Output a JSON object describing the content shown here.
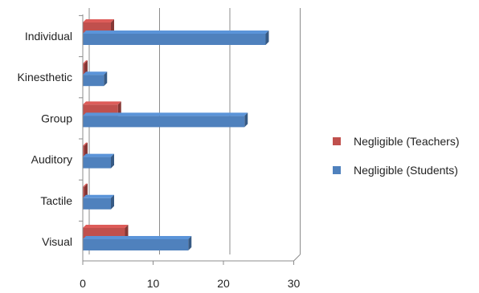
{
  "chart_data": {
    "type": "bar",
    "orientation": "horizontal",
    "style": "3d",
    "categories": [
      "Individual",
      "Kinesthetic",
      "Group",
      "Auditory",
      "Tactile",
      "Visual"
    ],
    "series": [
      {
        "name": "Negligible (Teachers)",
        "values": [
          4,
          0,
          5,
          0,
          0,
          6
        ],
        "color": "#C0504D"
      },
      {
        "name": "Negligible (Students)",
        "values": [
          26,
          3,
          23,
          4,
          4,
          15
        ],
        "color": "#4F81BD"
      }
    ],
    "xlim": [
      0,
      30
    ],
    "xticks": [
      "0",
      "10",
      "20",
      "30"
    ],
    "grid": "vertical",
    "legend_position": "right"
  }
}
